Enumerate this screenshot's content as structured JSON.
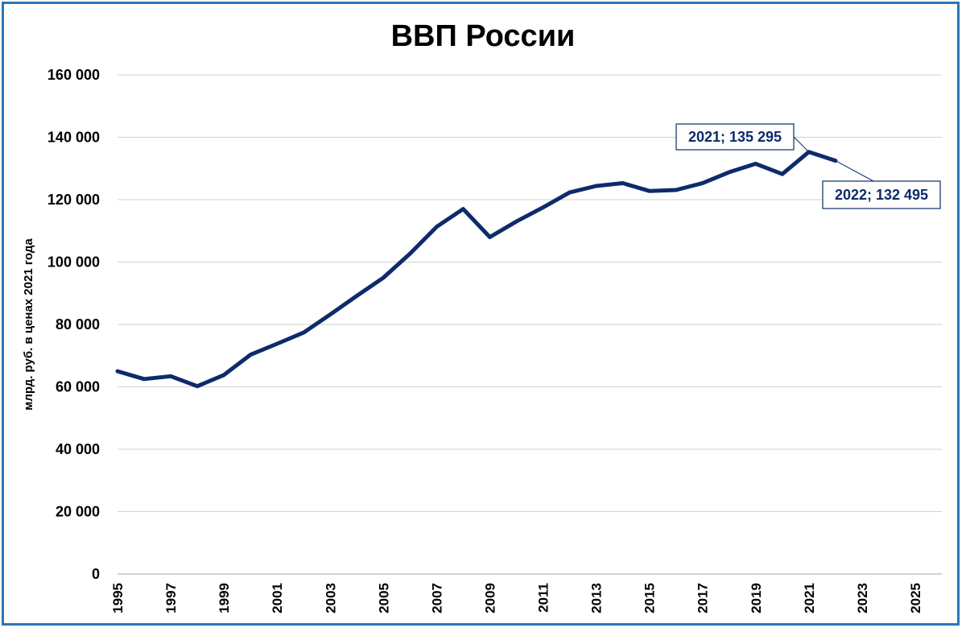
{
  "chart_data": {
    "type": "line",
    "title": "ВВП России",
    "xlabel": "",
    "ylabel": "млрд. руб. в ценах 2021 года",
    "ylim": [
      0,
      160000
    ],
    "xlim": [
      1995,
      2026
    ],
    "y_ticks": [
      "0",
      "20 000",
      "40 000",
      "60 000",
      "80 000",
      "100 000",
      "120 000",
      "140 000",
      "160 000"
    ],
    "y_tick_values": [
      0,
      20000,
      40000,
      60000,
      80000,
      100000,
      120000,
      140000,
      160000
    ],
    "x_ticks": [
      "1995",
      "1997",
      "1999",
      "2001",
      "2003",
      "2005",
      "2007",
      "2009",
      "2011",
      "2013",
      "2015",
      "2017",
      "2019",
      "2021",
      "2023",
      "2025"
    ],
    "x_tick_values": [
      1995,
      1997,
      1999,
      2001,
      2003,
      2005,
      2007,
      2009,
      2011,
      2013,
      2015,
      2017,
      2019,
      2021,
      2023,
      2025
    ],
    "grid": "horizontal",
    "line_color": "#0d2b6b",
    "border_color": "#2e75b6",
    "series": [
      {
        "x": [
          1995,
          1996,
          1997,
          1998,
          1999,
          2000,
          2001,
          2002,
          2003,
          2004,
          2005,
          2006,
          2007,
          2008,
          2009,
          2010,
          2011,
          2012,
          2013,
          2014,
          2015,
          2016,
          2017,
          2018,
          2019,
          2020,
          2021,
          2022
        ],
        "values": [
          65000,
          62500,
          63400,
          60200,
          63800,
          70300,
          73800,
          77400,
          83200,
          89200,
          95000,
          102700,
          111300,
          117000,
          108000,
          113000,
          117500,
          122300,
          124400,
          125300,
          122800,
          123100,
          125300,
          128800,
          131500,
          128200,
          135295,
          132495
        ]
      }
    ],
    "annotations": [
      {
        "label": "2021; 135 295",
        "x": 2021,
        "y": 135295
      },
      {
        "label": "2022; 132 495",
        "x": 2022,
        "y": 132495
      }
    ]
  }
}
